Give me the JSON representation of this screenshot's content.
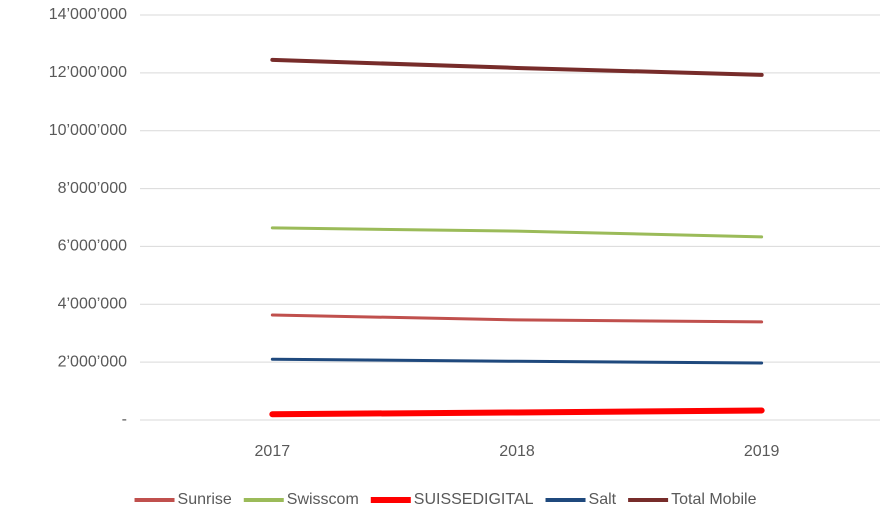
{
  "chart_data": {
    "type": "line",
    "categories": [
      "2017",
      "2018",
      "2019"
    ],
    "series": [
      {
        "name": "Sunrise",
        "color": "#c0504d",
        "values": [
          3630000,
          3460000,
          3390000
        ]
      },
      {
        "name": "Swisscom",
        "color": "#9bbb59",
        "values": [
          6640000,
          6530000,
          6330000
        ]
      },
      {
        "name": "SUISSEDIGITAL",
        "color": "#ff0000",
        "values": [
          200000,
          260000,
          330000
        ]
      },
      {
        "name": "Salt",
        "color": "#1f497d",
        "values": [
          2100000,
          2030000,
          1970000
        ]
      },
      {
        "name": "Total Mobile",
        "color": "#772c2a",
        "values": [
          12450000,
          12170000,
          11930000
        ]
      }
    ],
    "ylim": [
      0,
      14000000
    ],
    "yticks": [
      {
        "value": 0,
        "label": "-"
      },
      {
        "value": 2000000,
        "label": "2’000’000"
      },
      {
        "value": 4000000,
        "label": "4’000’000"
      },
      {
        "value": 6000000,
        "label": "6’000’000"
      },
      {
        "value": 8000000,
        "label": "8’000’000"
      },
      {
        "value": 10000000,
        "label": "10’000’000"
      },
      {
        "value": 12000000,
        "label": "12’000’000"
      },
      {
        "value": 14000000,
        "label": "14’000’000"
      }
    ],
    "grid": true,
    "legend": "bottom"
  }
}
